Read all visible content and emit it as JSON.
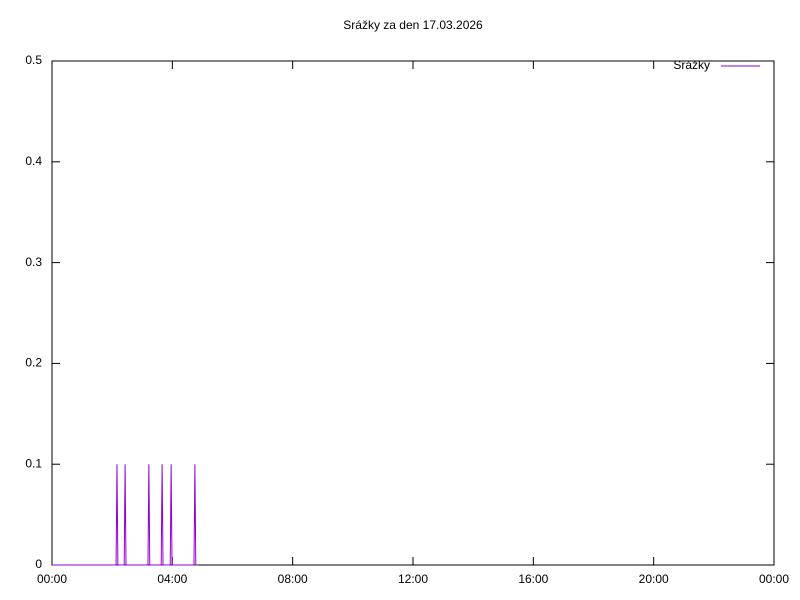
{
  "chart_data": {
    "type": "line",
    "title": "Srážky za den 17.03.2026",
    "x": [
      0,
      2.13,
      2.16,
      2.19,
      2.4,
      2.43,
      2.46,
      3.19,
      3.22,
      3.25,
      3.63,
      3.66,
      3.69,
      3.93,
      3.96,
      3.99,
      4.72,
      4.75,
      4.78,
      4.85
    ],
    "series": [
      {
        "name": "Srážky",
        "color": "#9400d3",
        "values": [
          0,
          0,
          0.1,
          0,
          0,
          0.1,
          0,
          0,
          0.1,
          0,
          0,
          0.1,
          0,
          0,
          0.1,
          0,
          0,
          0.1,
          0,
          0
        ]
      }
    ],
    "xlim": [
      0,
      24
    ],
    "xticks": [
      {
        "value": 0,
        "label": "00:00"
      },
      {
        "value": 4,
        "label": "04:00"
      },
      {
        "value": 8,
        "label": "08:00"
      },
      {
        "value": 12,
        "label": "12:00"
      },
      {
        "value": 16,
        "label": "16:00"
      },
      {
        "value": 20,
        "label": "20:00"
      },
      {
        "value": 24,
        "label": "00:00"
      }
    ],
    "ylim": [
      0,
      0.5
    ],
    "yticks": [
      0,
      0.1,
      0.2,
      0.3,
      0.4,
      0.5
    ],
    "grid": false,
    "legend": "top-right"
  }
}
